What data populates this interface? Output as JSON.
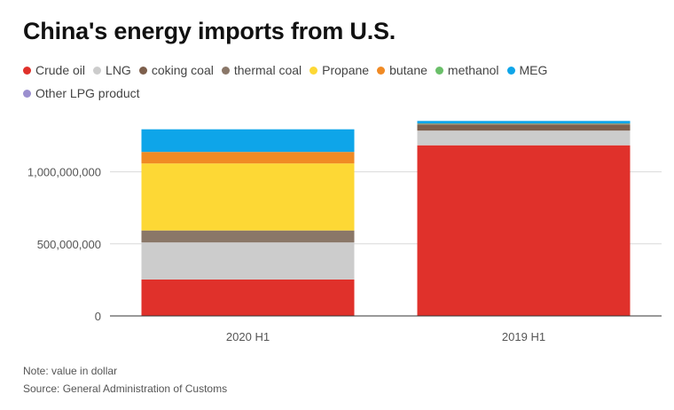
{
  "title": "China's energy imports from U.S.",
  "notes": {
    "value_note": "Note: value in dollar",
    "source": "Source: General Administration of Customs"
  },
  "colors": {
    "Crude oil": "#e0312b",
    "LNG": "#cccccc",
    "coking coal": "#7d5f4c",
    "thermal coal": "#8a7768",
    "Propane": "#fdd835",
    "butane": "#f08a24",
    "methanol": "#6abf69",
    "MEG": "#0ea5e9",
    "Other LPG product": "#9b8fcf"
  },
  "chart_data": {
    "type": "bar",
    "stacked": true,
    "title": "China's energy imports from U.S.",
    "categories": [
      "2020 H1",
      "2019 H1"
    ],
    "series": [
      {
        "name": "Crude oil",
        "values": [
          253000000,
          1184000000
        ]
      },
      {
        "name": "LNG",
        "values": [
          257000000,
          102000000
        ]
      },
      {
        "name": "coking coal",
        "values": [
          0,
          40000000
        ]
      },
      {
        "name": "thermal coal",
        "values": [
          83000000,
          8000000
        ]
      },
      {
        "name": "Propane",
        "values": [
          465000000,
          0
        ]
      },
      {
        "name": "butane",
        "values": [
          80000000,
          0
        ]
      },
      {
        "name": "methanol",
        "values": [
          0,
          2000000
        ]
      },
      {
        "name": "MEG",
        "values": [
          157000000,
          17000000
        ]
      },
      {
        "name": "Other LPG product",
        "values": [
          0,
          0
        ]
      }
    ],
    "ylim": [
      0,
      1400000000
    ],
    "yticks": [
      0,
      500000000,
      1000000000
    ],
    "ytick_labels": [
      "0",
      "500,000,000",
      "1,000,000,000"
    ],
    "grid": true,
    "legend_position": "top"
  }
}
